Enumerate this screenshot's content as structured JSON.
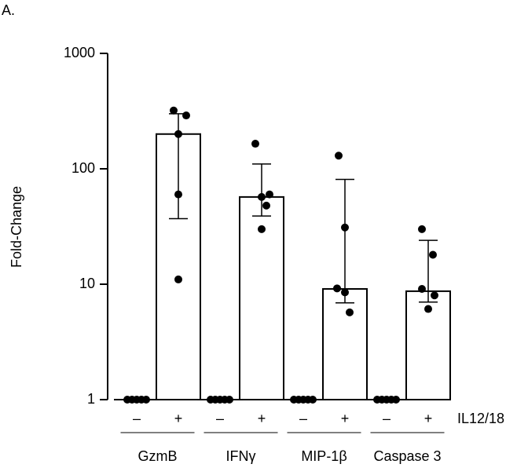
{
  "panel_label": "A.",
  "chart_data": {
    "type": "bar-dot",
    "ylabel": "Fold-Change",
    "log_scale": true,
    "ylim": [
      1,
      1000
    ],
    "yticks": [
      1,
      10,
      100,
      1000
    ],
    "categories": [
      "GzmB",
      "IFNγ",
      "MIP-1β",
      "Caspase 3"
    ],
    "condition_label": "IL12/18",
    "bar_fill": "#ffffff",
    "bar_edge": "#000000",
    "point_color": "#000000",
    "series": [
      {
        "name": "–",
        "values": [
          1,
          1,
          1,
          1
        ],
        "points": [
          [
            1,
            1,
            1,
            1,
            1
          ],
          [
            1,
            1,
            1,
            1,
            1
          ],
          [
            1,
            1,
            1,
            1,
            1
          ],
          [
            1,
            1,
            1,
            1,
            1
          ]
        ]
      },
      {
        "name": "+",
        "values": [
          200,
          57,
          9.1,
          8.7
        ],
        "error_low": [
          37,
          39,
          6.9,
          7
        ],
        "error_high": [
          300,
          110,
          81,
          24
        ],
        "points": [
          [
            320,
            290,
            200,
            60,
            11
          ],
          [
            165,
            60,
            57,
            48,
            30
          ],
          [
            130,
            31,
            9.2,
            8.5,
            5.7
          ],
          [
            30,
            18,
            9.1,
            8,
            6.1
          ]
        ]
      }
    ]
  }
}
